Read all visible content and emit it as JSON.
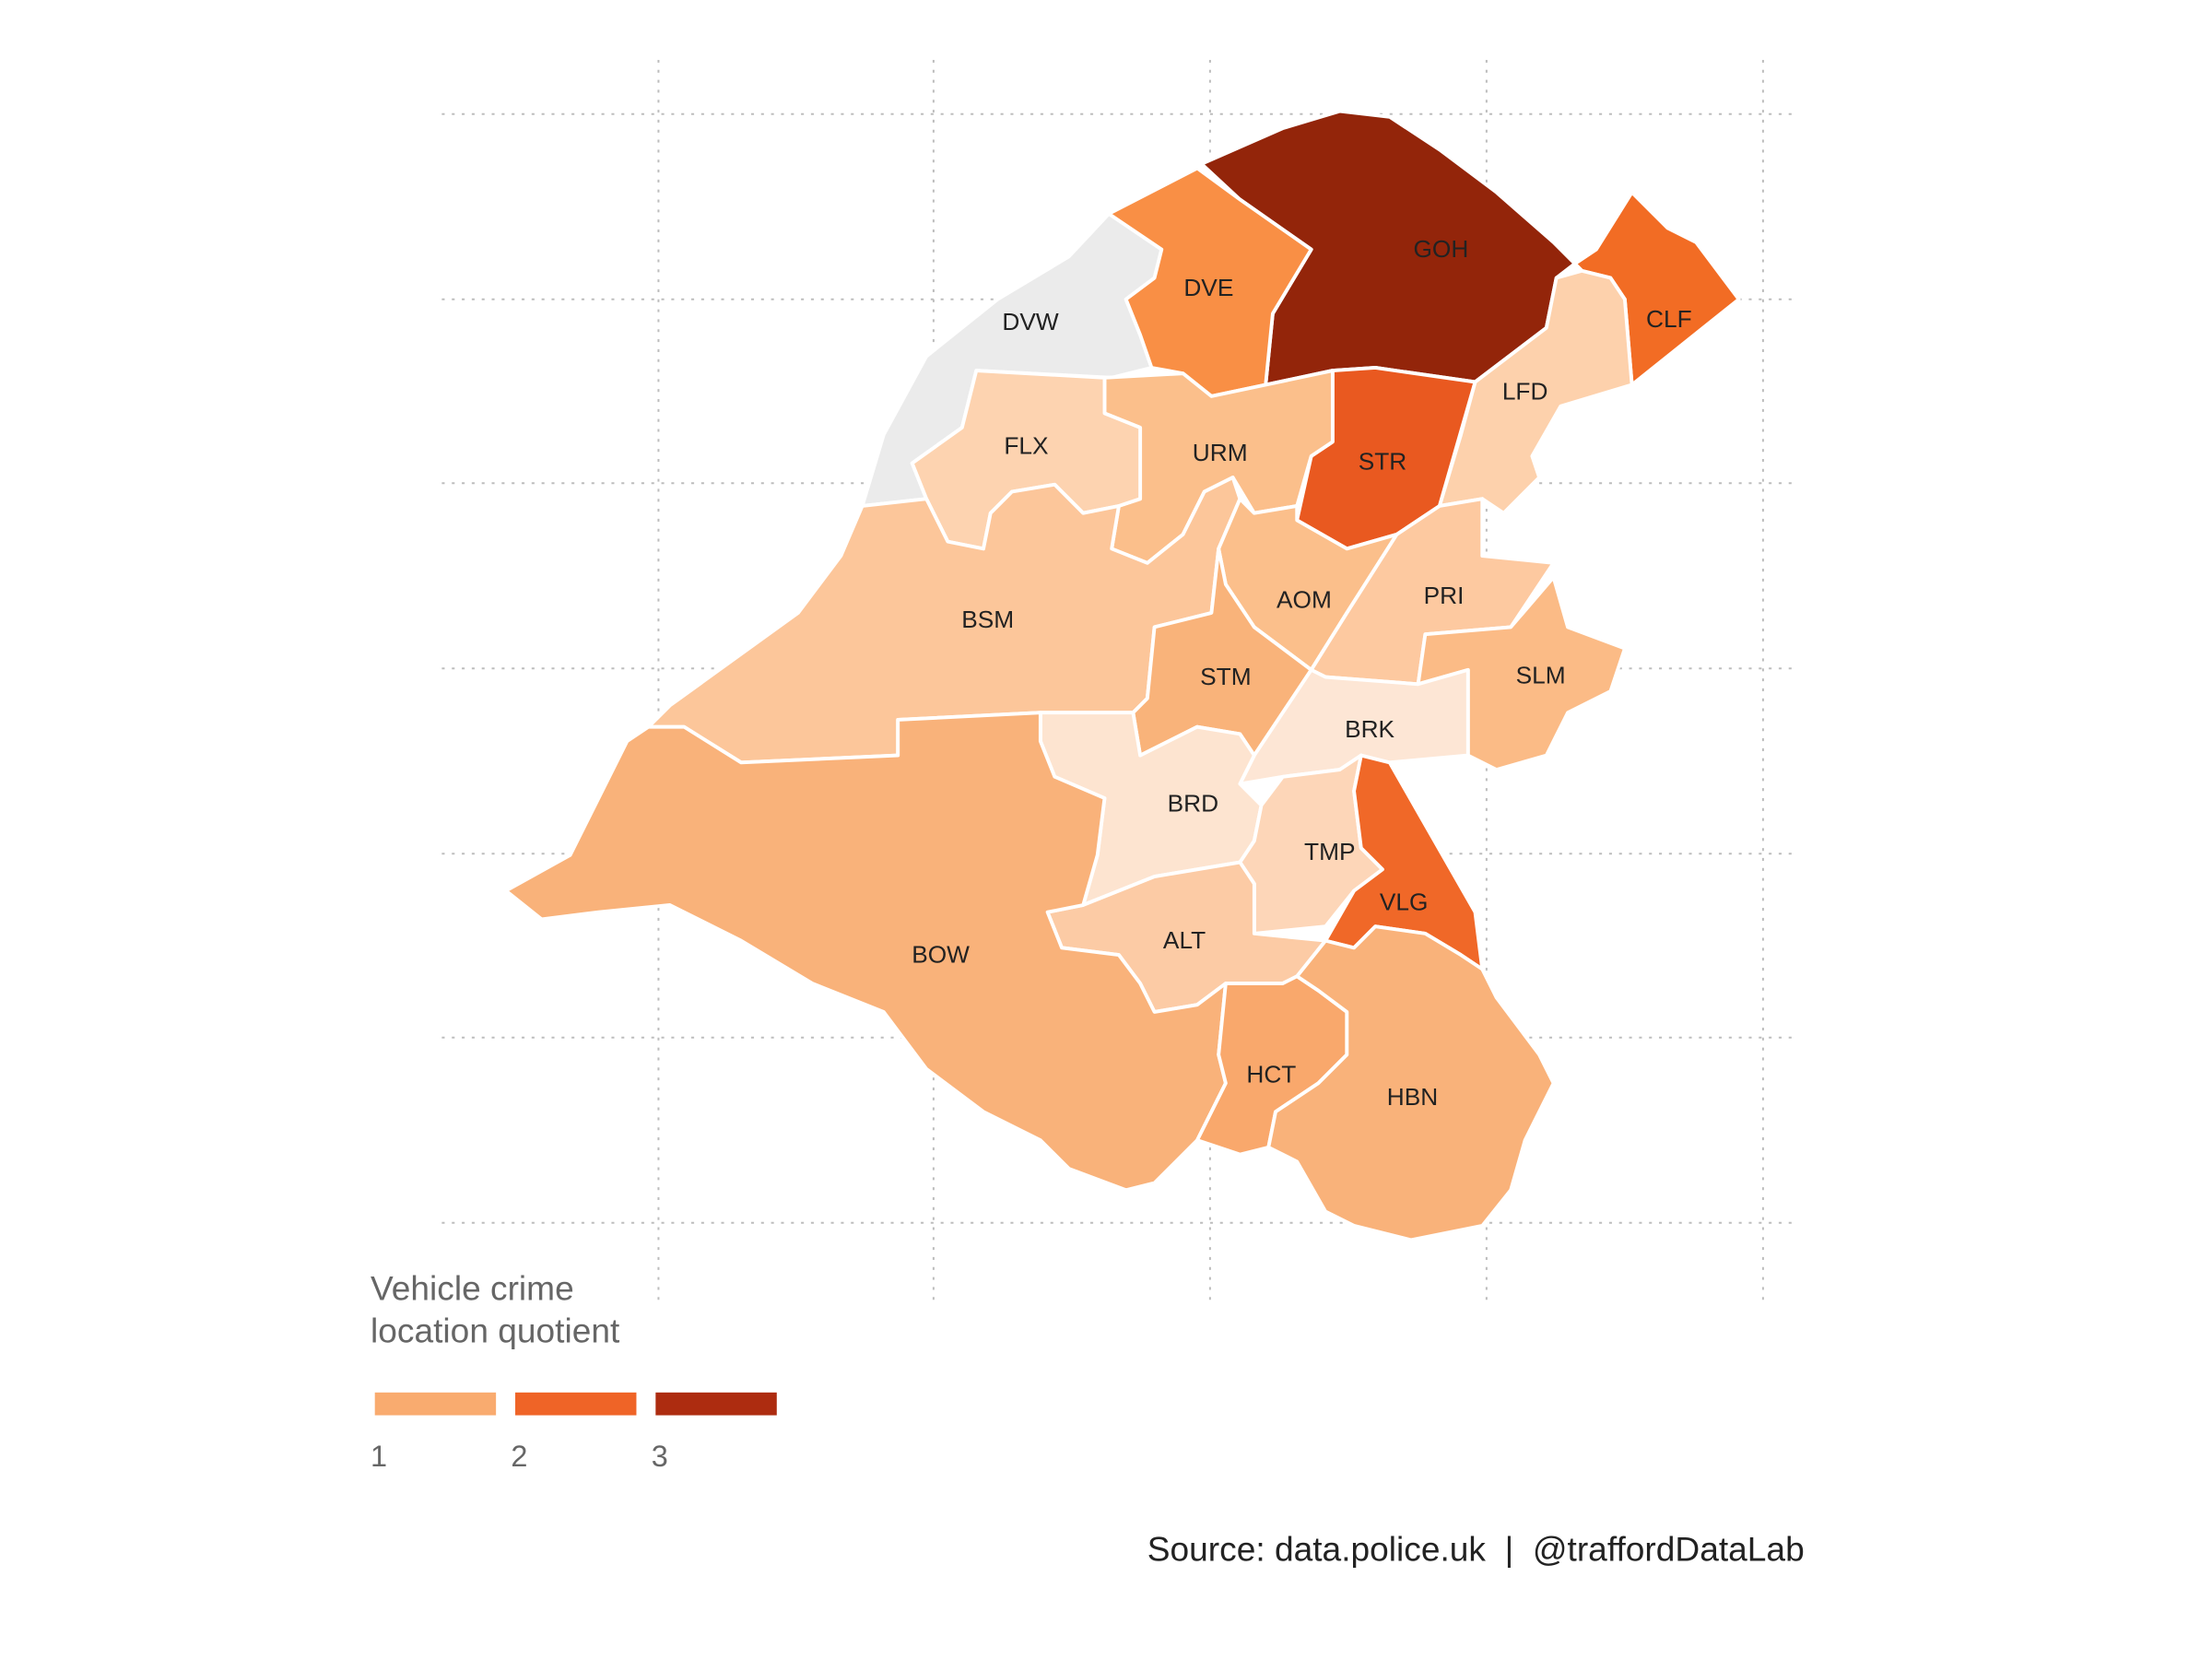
{
  "map": {
    "wards": [
      {
        "label": "DVW",
        "color": "#ebebeb"
      },
      {
        "label": "GOH",
        "color": "#93250a"
      },
      {
        "label": "DVE",
        "color": "#f98f45"
      },
      {
        "label": "CLF",
        "color": "#f26c24"
      },
      {
        "label": "LFD",
        "color": "#fdd1ac"
      },
      {
        "label": "STR",
        "color": "#e95920"
      },
      {
        "label": "URM",
        "color": "#fbbf8b"
      },
      {
        "label": "FLX",
        "color": "#fdd3b0"
      },
      {
        "label": "BSM",
        "color": "#fcc69a"
      },
      {
        "label": "AOM",
        "color": "#fbbf8b"
      },
      {
        "label": "STM",
        "color": "#f9b37a"
      },
      {
        "label": "PRI",
        "color": "#fdc9a0"
      },
      {
        "label": "SLM",
        "color": "#fbbb86"
      },
      {
        "label": "BRK",
        "color": "#fde6d5"
      },
      {
        "label": "BRD",
        "color": "#fde4d0"
      },
      {
        "label": "TMP",
        "color": "#fdd6b8"
      },
      {
        "label": "VLG",
        "color": "#f06828"
      },
      {
        "label": "ALT",
        "color": "#fccba5"
      },
      {
        "label": "BOW",
        "color": "#f9b27a"
      },
      {
        "label": "HCT",
        "color": "#f9a86c"
      },
      {
        "label": "HBN",
        "color": "#f9b27a"
      }
    ]
  },
  "legend": {
    "title": [
      "Vehicle crime",
      "location quotient"
    ],
    "ticks": [
      1,
      2,
      3
    ],
    "colors": [
      "#f9ab6f",
      "#ef6427",
      "#ad2c10"
    ]
  },
  "caption": "Source: data.police.uk  |  @traffordDataLab"
}
